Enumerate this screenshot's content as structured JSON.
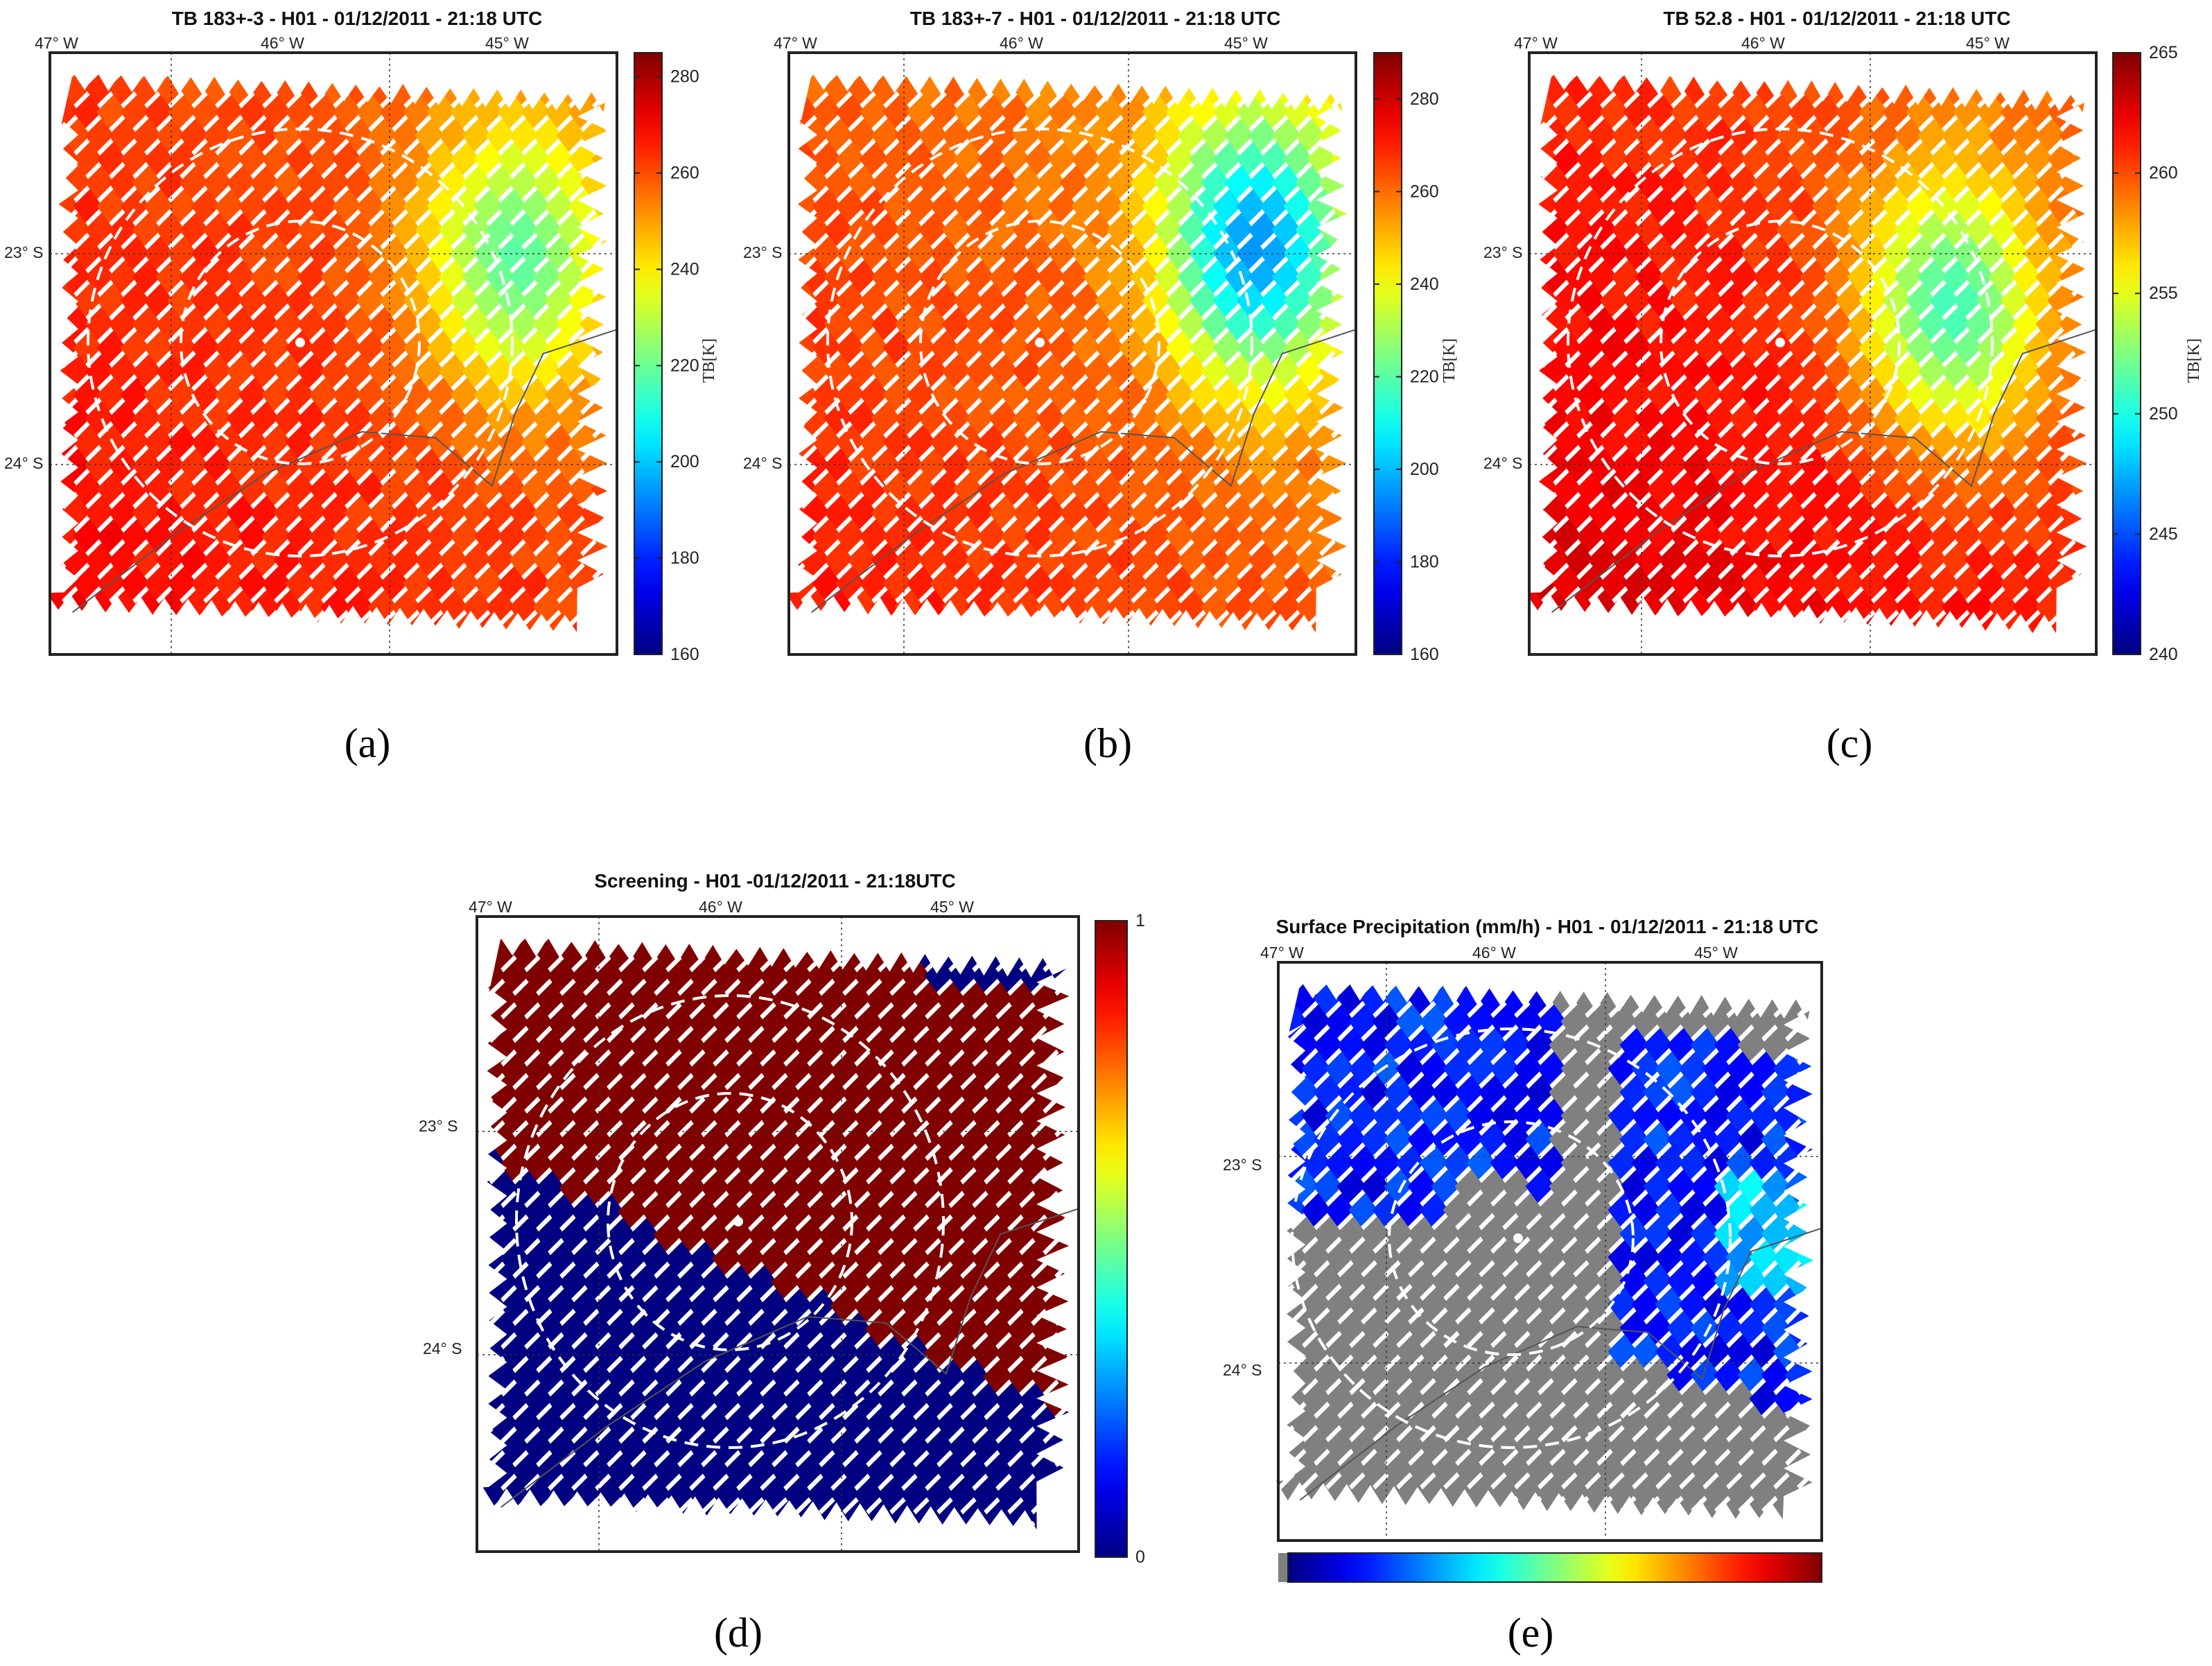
{
  "chart_data": [
    {
      "id": "a",
      "type": "heatmap",
      "title": "TB 183+-3 - H01 - 01/12/2011 - 21:18 UTC",
      "caption": "(a)",
      "lon_ticks": [
        "47° W",
        "46° W",
        "45° W"
      ],
      "lat_ticks": [
        "23° S",
        "24° S"
      ],
      "colorbar": {
        "min": 160,
        "max": 285,
        "ticks": [
          160,
          180,
          200,
          220,
          240,
          260,
          280
        ],
        "label": "TB[K]",
        "colormap": "jet"
      },
      "background_value": 262,
      "cool_anomaly": {
        "center": [
          0.8,
          0.32
        ],
        "value": 218
      },
      "warm_region_value": 270
    },
    {
      "id": "b",
      "type": "heatmap",
      "title": "TB 183+-7 - H01 - 01/12/2011 - 21:18 UTC",
      "caption": "(b)",
      "lon_ticks": [
        "47° W",
        "46° W",
        "45° W"
      ],
      "lat_ticks": [
        "23° S",
        "24° S"
      ],
      "colorbar": {
        "min": 160,
        "max": 290,
        "ticks": [
          160,
          180,
          200,
          220,
          240,
          260,
          280
        ],
        "label": "TB[K]",
        "colormap": "jet"
      },
      "background_value": 262,
      "cool_anomaly": {
        "center": [
          0.8,
          0.3
        ],
        "value": 195
      },
      "warm_region_value": 272
    },
    {
      "id": "c",
      "type": "heatmap",
      "title": "TB 52.8 - H01 - 01/12/2011 - 21:18 UTC",
      "caption": "(c)",
      "lon_ticks": [
        "47° W",
        "46° W",
        "45° W"
      ],
      "lat_ticks": [
        "23° S",
        "24° S"
      ],
      "colorbar": {
        "min": 240,
        "max": 265,
        "ticks": [
          240,
          245,
          250,
          255,
          260,
          265
        ],
        "label": "TB[K]",
        "colormap": "jet"
      },
      "background_value": 261,
      "cool_anomaly": {
        "center": [
          0.72,
          0.4
        ],
        "value": 251
      },
      "warm_region_value": 263
    },
    {
      "id": "d",
      "type": "heatmap",
      "title": "Screening -  H01 -01/12/2011 - 21:18UTC",
      "caption": "(d)",
      "lon_ticks": [
        "47° W",
        "46° W",
        "45° W"
      ],
      "lat_ticks": [
        "23° S",
        "24° S"
      ],
      "colorbar": {
        "min": 0,
        "max": 1,
        "ticks": [
          0,
          1
        ],
        "label": "",
        "colormap": "jet"
      },
      "classes": {
        "upper_region": 1,
        "lower_region": 0,
        "top_right_corner": 0
      }
    },
    {
      "id": "e",
      "type": "heatmap",
      "title": "Surface Precipitation (mm/h) - H01 - 01/12/2011 - 21:18 UTC",
      "caption": "(e)",
      "lon_ticks": [
        "47° W",
        "46° W",
        "45° W"
      ],
      "lat_ticks": [
        "23° S",
        "24° S"
      ],
      "colorbar": {
        "orientation": "horizontal",
        "ticks": [],
        "label": "",
        "colormap": "jet",
        "no_rain_color": "#808080"
      },
      "no_rain_color": "#808080"
    }
  ],
  "colors": {
    "dashed_circle": "#ffffff",
    "coastline": "#555555",
    "frame": "#222222"
  }
}
